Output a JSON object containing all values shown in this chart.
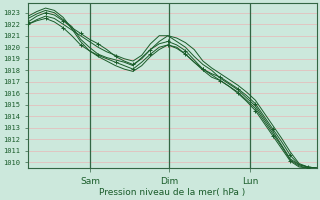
{
  "bg_color": "#cce8dc",
  "plot_bg_color": "#cce8dc",
  "grid_h_color": "#e8b8b8",
  "grid_v_color": "#aaccbb",
  "line_color": "#1a5c2a",
  "spine_color": "#336644",
  "ylabel_text": "Pression niveau de la mer( hPa )",
  "ylim_min": 1009.5,
  "ylim_max": 1023.8,
  "yticks": [
    1010,
    1011,
    1012,
    1013,
    1014,
    1015,
    1016,
    1017,
    1018,
    1019,
    1020,
    1021,
    1022,
    1023
  ],
  "xtick_labels": [
    "Sam",
    "Dim",
    "Lun"
  ],
  "xtick_positions": [
    0.215,
    0.49,
    0.77
  ],
  "vline_positions": [
    0.215,
    0.49,
    0.77
  ],
  "series": [
    [
      1022.0,
      1022.4,
      1022.7,
      1022.5,
      1022.0,
      1021.5,
      1021.0,
      1020.5,
      1020.0,
      1019.6,
      1019.3,
      1019.0,
      1018.8,
      1019.3,
      1020.3,
      1021.0,
      1021.0,
      1020.5,
      1020.0,
      1019.2,
      1018.5,
      1018.0,
      1017.3,
      1016.8,
      1016.3,
      1015.6,
      1014.9,
      1013.8,
      1012.7,
      1011.5,
      1010.3,
      1009.8,
      1009.6,
      1009.5
    ],
    [
      1022.2,
      1022.7,
      1023.0,
      1022.8,
      1022.3,
      1021.7,
      1021.2,
      1020.7,
      1020.3,
      1019.8,
      1019.2,
      1018.8,
      1018.5,
      1019.0,
      1019.8,
      1020.3,
      1020.5,
      1020.2,
      1019.7,
      1018.9,
      1018.1,
      1017.6,
      1017.1,
      1016.6,
      1016.0,
      1015.3,
      1014.5,
      1013.4,
      1012.3,
      1011.2,
      1010.1,
      1009.6,
      1009.5,
      1009.5
    ],
    [
      1022.5,
      1022.9,
      1023.2,
      1023.0,
      1022.4,
      1021.8,
      1020.7,
      1020.0,
      1019.4,
      1019.1,
      1018.9,
      1018.7,
      1018.4,
      1019.1,
      1019.8,
      1020.5,
      1021.0,
      1020.8,
      1020.4,
      1019.8,
      1018.8,
      1018.2,
      1017.7,
      1017.2,
      1016.7,
      1016.1,
      1015.4,
      1014.3,
      1013.2,
      1012.1,
      1010.9,
      1009.9,
      1009.6,
      1009.5
    ],
    [
      1022.0,
      1022.3,
      1022.5,
      1022.2,
      1021.7,
      1021.0,
      1020.2,
      1019.7,
      1019.3,
      1019.0,
      1018.7,
      1018.4,
      1018.1,
      1018.7,
      1019.4,
      1020.0,
      1020.2,
      1019.9,
      1019.4,
      1018.7,
      1018.1,
      1017.7,
      1017.4,
      1016.9,
      1016.4,
      1015.8,
      1015.1,
      1014.0,
      1012.9,
      1011.8,
      1010.6,
      1009.8,
      1009.6,
      1009.5
    ],
    [
      1022.7,
      1023.1,
      1023.4,
      1023.2,
      1022.6,
      1021.6,
      1020.5,
      1019.7,
      1019.2,
      1018.8,
      1018.4,
      1018.1,
      1017.9,
      1018.4,
      1019.2,
      1019.8,
      1020.2,
      1020.0,
      1019.4,
      1018.7,
      1018.0,
      1017.4,
      1017.1,
      1016.6,
      1016.1,
      1015.4,
      1014.7,
      1013.6,
      1012.5,
      1011.4,
      1010.2,
      1009.7,
      1009.5,
      1009.5
    ]
  ],
  "marker_series": [
    1,
    3
  ],
  "marker_step": 2,
  "ytick_fontsize": 5.0,
  "xtick_fontsize": 6.5,
  "xlabel_fontsize": 6.5
}
